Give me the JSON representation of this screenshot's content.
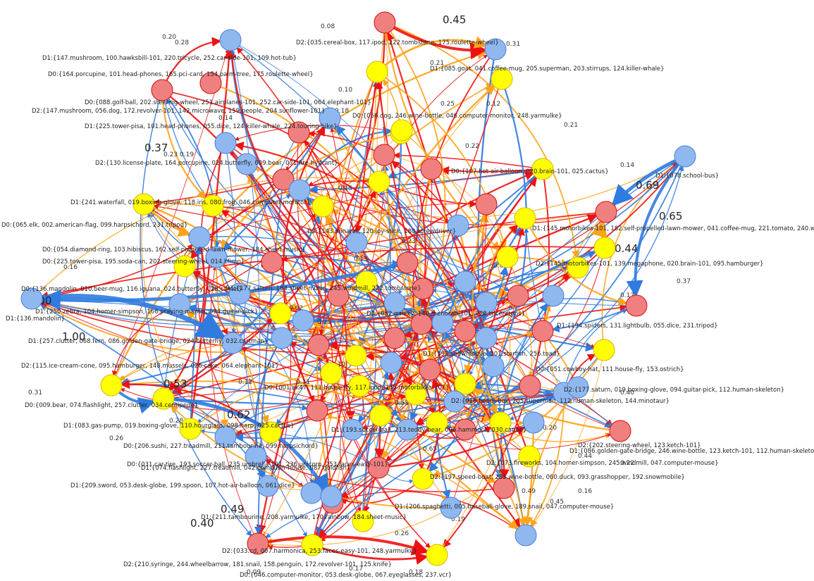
{
  "colors": {
    "d0": "#f08080",
    "d0_stroke": "#d01010",
    "d1": "#90b8f0",
    "d1_stroke": "#4a7fd6",
    "d2": "#ffff00",
    "d2_stroke": "#d8b400",
    "edge_red": "#ee1111",
    "edge_blue": "#2f7be0",
    "edge_orange": "#ffa31a",
    "background": "#ffffff"
  },
  "nodes": [
    {
      "id": "n1",
      "domain": "d2",
      "label": "D2:{035.cereal-box, 117.ipod, 222.tombstone, 175.roulette-wheel}"
    },
    {
      "id": "n2",
      "domain": "d0",
      "label": ""
    },
    {
      "id": "n3",
      "domain": "d1",
      "label": "D1:{078.school-bus}"
    },
    {
      "id": "n4",
      "domain": "d1",
      "label": "D1:{147.mushroom, 100.hawksbill-101, 220.tricycle, 252.car-side-101, 109.hot-tub}"
    },
    {
      "id": "n5",
      "domain": "d0",
      "label": "D0:{164.porcupine, 101.head-phones, 165.pci-card, 154.palm-tree, 175.roulette-wheel}"
    },
    {
      "id": "n6",
      "domain": "d1",
      "label": "D1:{085.goat, 041.coffee-mug, 205.superman, 203.stirrups, 124.killer-whale}"
    },
    {
      "id": "n7",
      "domain": "d0",
      "label": "D0:{088.golf-ball, 202.steering-wheel, 251.airplanes-101, 252.car-side-101, 064.elephant-101}"
    },
    {
      "id": "n8",
      "domain": "d2",
      "label": "D2:{147.mushroom, 056.dog, 172.revolver-101, 142.microwave, 159.people, 204.sunflower-101}"
    },
    {
      "id": "n9",
      "domain": "d1",
      "label": "D1:{225.tower-pisa, 101.head-phones, 055.dice, 124.killer-whale, 224.touring-bike}"
    },
    {
      "id": "n10",
      "domain": "d2",
      "label": "D2:{130.license-plate, 164.porcupine, 024.butterfly, 009.bear, 071.fire-hydrant}"
    },
    {
      "id": "n11",
      "domain": "d2",
      "label": "D1:{241.waterfall, 019.boxing-glove, 118.iris, 080.frog, 046.computer-monitor}"
    },
    {
      "id": "n12",
      "domain": "d1",
      "label": "D0:{065.elk, 002.american-flag, 099.harpsichord, 231.tripod}"
    },
    {
      "id": "n13",
      "domain": "d1",
      "label": "D0:{054.diamond-ring, 103.hibiscus, 162.self-propelled-lawn-mower, 184.sheet-music}"
    },
    {
      "id": "n14",
      "domain": "d2",
      "label": "D0:{225.tower-pisa, 195.soda-can, 202.steering-wheel, 014.blimp}"
    },
    {
      "id": "n15",
      "domain": "d1",
      "label": "D1:{136.mandolin}"
    },
    {
      "id": "n16",
      "domain": "d1",
      "label": "D1:{250.zebra, 104.homer-simpson, 166.praying-mantis, 094.guitar-pick}"
    },
    {
      "id": "n17",
      "domain": "d1",
      "label": "D1:{257.clutter, 068.fern, 086.golden-gate-bridge, 024.butterfly, 032.cartman}"
    },
    {
      "id": "n18",
      "domain": "d2",
      "label": "D2:{115.ice-cream-cone, 095.hamburger, 148.mussels, 026.cake, 064.elephant-101}"
    },
    {
      "id": "n19",
      "domain": "d2",
      "label": "D0:{009.bear, 074.flashlight, 257.clutter, 034.centipede}"
    },
    {
      "id": "n20",
      "domain": "d2",
      "label": "D1:{083.gas-pump, 019.boxing-glove, 110.hourglass, 098.harp, 025.cactus}"
    },
    {
      "id": "n21",
      "domain": "d1",
      "label": "D0:{206.sushi, 227.treadmill, 211.tambourine, 099.harpsichord}"
    },
    {
      "id": "n22",
      "domain": "d1",
      "label": "D1:{074.flashlight, 227.treadmill, 042.computer-house, 087.goldfish}"
    },
    {
      "id": "n23",
      "domain": "d1",
      "label": "D1:{209.sword, 053.desk-globe, 199.spoon, 107.hot-air-balloon, 061.dice}"
    },
    {
      "id": "n24",
      "domain": "d0",
      "label": "D1:{211.tambourine, 208.yarmulke, 170.rainbow, 184.sheet-music}"
    },
    {
      "id": "n25",
      "domain": "d0",
      "label": "D2:{033.cd, 007.harmonica, 253.faces-easy-101, 248.yarmulke}"
    },
    {
      "id": "n26",
      "domain": "d2",
      "label": "D2:{210.syringe, 244.wheelbarrow, 181.snail, 158.penguin, 172.revolver-101, 125.knife}"
    },
    {
      "id": "n27",
      "domain": "d2",
      "label": "D0:{046.computer-monitor, 053.desk-globe, 067.eyeglasses, 237.vcr}"
    },
    {
      "id": "n28",
      "domain": "d0",
      "label": "D0:{136.mandolin, 010.beer-mug, 116.iguana, 024.butterfly, 028.camel}"
    },
    {
      "id": "n29",
      "domain": "d0",
      "label": "D1:{145.motorbikes-101, 182.self-propelled-lawn-mower, 041.coffee-mug, 221.tomato, 240.watch-101}"
    },
    {
      "id": "n30",
      "domain": "d2",
      "label": "D2:{145.motorbikes-101, 139.megaphone, 020.brain-101, 095.hamburger}"
    },
    {
      "id": "n31",
      "domain": "d0",
      "label": "D1:{194.spiders, 131.lightbulb, 055.dice, 231.tripod}"
    },
    {
      "id": "n32",
      "domain": "d2",
      "label": "D0:{051.cowboy-hat, 111.house-fly, 153.ostrich}"
    },
    {
      "id": "n33",
      "domain": "d0",
      "label": "D2:{177.saturn, 019.boxing-glove, 094.guitar-pick, 112.human-skeleton}"
    },
    {
      "id": "n34",
      "domain": "d0",
      "label": "D2:{202.steering-wheel, 123.ketch-101}"
    },
    {
      "id": "n35",
      "domain": "d1",
      "label": "D2:{016.boom-box, 205.superman, 112.human-skeleton, 144.minotaur}"
    },
    {
      "id": "n36",
      "domain": "d2",
      "label": "D2:{073.fireworks, 104.homer-simpson, 245.windmill, 047.computer-mouse}"
    },
    {
      "id": "n37",
      "domain": "d0",
      "label": "D1:{193.soccer-ball, 213.teddy-bear, 096.hammock, 030.canoe}"
    },
    {
      "id": "n38",
      "domain": "d0",
      "label": "D2:{197.speed-boat, 233.wine-bottle, 060.duck, 093.grasshopper, 192.snowmobile}"
    },
    {
      "id": "n39",
      "domain": "d1",
      "label": "D1:{086.golden-gate-bridge, 246.wine-bottle, 123.ketch-101, 112.human-skeleton}"
    },
    {
      "id": "n40",
      "domain": "d2",
      "label": "D0:{031.car-tire, 193.soccer-ball, 235.umbrella-101, 236.unicorn, 253.faces-easy-101}"
    },
    {
      "id": "n41",
      "domain": "d0",
      "label": "D0:{001.ak47, 111.house-fly, 117.ipod, 145.motorbikes-101}"
    },
    {
      "id": "n42",
      "domain": "d2",
      "label": "D0:{056.dog, 246.wine-bottle, 046.computer-monitor, 248.yarmulke}"
    },
    {
      "id": "n43",
      "domain": "d1",
      "label": "D2:{143.minaret, 120.joy-stick, 180.screwdriver}"
    },
    {
      "id": "n44",
      "domain": "d0",
      "label": "D1:{177.saturn, 184.sheet-music, 245.windmill, 222.tombstone}"
    },
    {
      "id": "n45",
      "domain": "d2",
      "label": "D0:{107.hot-air-balloon, 020.brain-101, 025.cactus}"
    },
    {
      "id": "n46",
      "domain": "d1",
      "label": "D1:{206.spaghetti, 005.baseball-glove, 189.snail, 047.computer-mouse}"
    },
    {
      "id": "n47",
      "domain": "d0",
      "label": "D0:{082.galaxy, 140.menorah-101, 228.triceratops}"
    },
    {
      "id": "n48",
      "domain": "d1",
      "label": "D1:{192.snowmobile, 201.starfish, 256.toad}"
    }
  ],
  "weights": [
    {
      "value": "1.00",
      "big": true
    },
    {
      "value": "1.00",
      "big": true
    },
    {
      "value": "0.69",
      "big": true
    },
    {
      "value": "0.65",
      "big": true
    },
    {
      "value": "0.62",
      "big": true
    },
    {
      "value": "0.53",
      "big": true
    },
    {
      "value": "0.49",
      "big": true
    },
    {
      "value": "0.45",
      "big": true
    },
    {
      "value": "0.44",
      "big": true
    },
    {
      "value": "0.40",
      "big": true
    },
    {
      "value": "0.37",
      "big": true
    },
    {
      "value": "0.31",
      "big": false
    },
    {
      "value": "0.28",
      "big": false
    },
    {
      "value": "0.26",
      "big": false
    },
    {
      "value": "0.25",
      "big": false
    },
    {
      "value": "0.23",
      "big": false
    },
    {
      "value": "0.22",
      "big": false
    },
    {
      "value": "0.21",
      "big": false
    },
    {
      "value": "0.20",
      "big": false
    },
    {
      "value": "0.19",
      "big": false
    },
    {
      "value": "0.18",
      "big": false
    },
    {
      "value": "0.17",
      "big": false
    },
    {
      "value": "0.16",
      "big": false
    },
    {
      "value": "0.15",
      "big": false
    },
    {
      "value": "0.14",
      "big": false
    },
    {
      "value": "0.13",
      "big": false
    },
    {
      "value": "0.12",
      "big": false
    },
    {
      "value": "0.11",
      "big": false
    },
    {
      "value": "0.10",
      "big": false
    },
    {
      "value": "0.09",
      "big": false
    },
    {
      "value": "0.08",
      "big": false
    }
  ]
}
